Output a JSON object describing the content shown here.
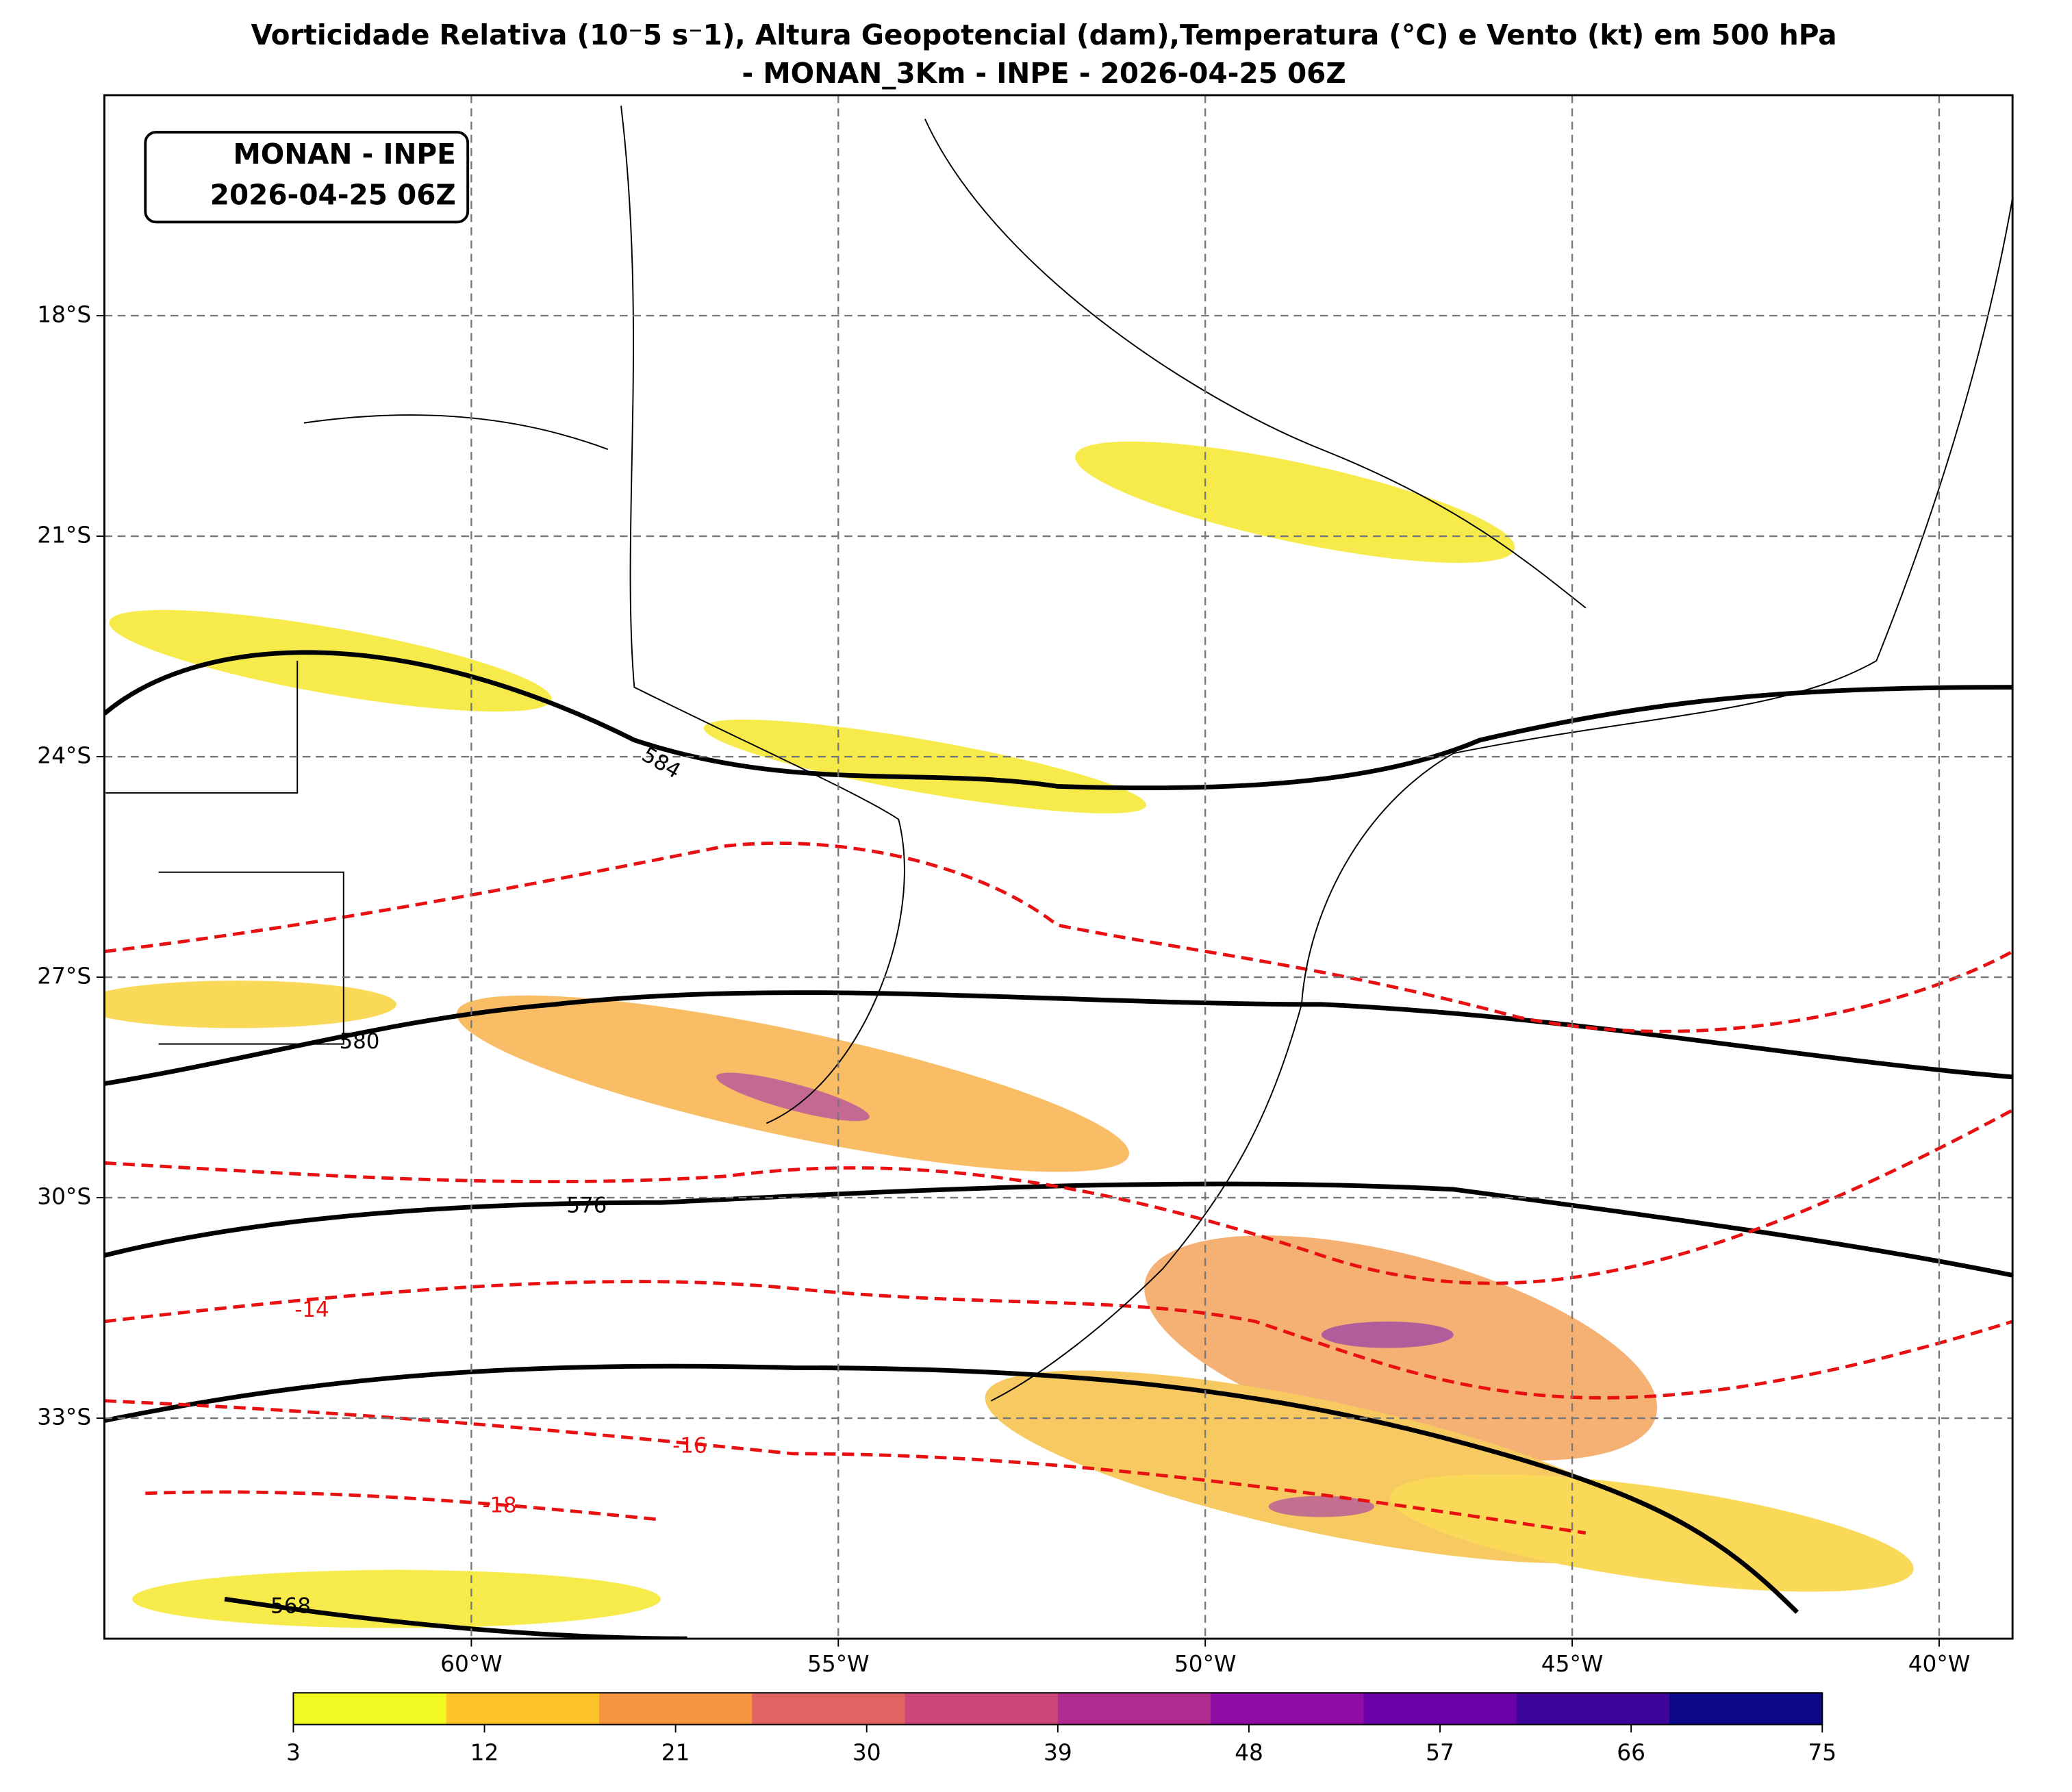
{
  "title_line1": "Vorticidade Relativa (10⁻5 s⁻1), Altura Geopotencial (dam),Temperatura (°C) e Vento (kt) em 500 hPa",
  "title_line2": "- MONAN_3Km - INPE - 2026-04-25 06Z",
  "annotation": [
    "MONAN - INPE",
    "2026-04-25 06Z"
  ],
  "map": {
    "xlim": [
      -65,
      -39
    ],
    "ylim": [
      -36,
      -15
    ],
    "xticks": [
      {
        "value": -60,
        "label": "60°W"
      },
      {
        "value": -55,
        "label": "55°W"
      },
      {
        "value": -50,
        "label": "50°W"
      },
      {
        "value": -45,
        "label": "45°W"
      },
      {
        "value": -40,
        "label": "40°W"
      }
    ],
    "yticks": [
      {
        "value": -18,
        "label": "18°S"
      },
      {
        "value": -21,
        "label": "21°S"
      },
      {
        "value": -24,
        "label": "24°S"
      },
      {
        "value": -27,
        "label": "27°S"
      },
      {
        "value": -30,
        "label": "30°S"
      },
      {
        "value": -33,
        "label": "33°S"
      }
    ],
    "contour_labels": [
      "584",
      "580",
      "576",
      "568",
      "-14",
      "-16",
      "-18"
    ]
  },
  "colorbar": {
    "range": [
      3,
      75
    ],
    "ticks": [
      3,
      12,
      21,
      30,
      39,
      48,
      57,
      66,
      75
    ],
    "colors": [
      "#f0f921",
      "#fdc328",
      "#f89540",
      "#e16462",
      "#cc4778",
      "#b12a90",
      "#8f0da4",
      "#6a00a8",
      "#3e049c",
      "#0d0887"
    ]
  }
}
